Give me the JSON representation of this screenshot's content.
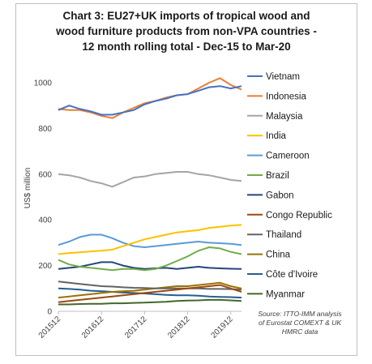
{
  "chart_data": {
    "type": "line",
    "title_lines": [
      "Chart 3: EU27+UK imports of tropical wood and",
      "wood furniture products from non-VPA countries -",
      "12 month rolling total - Dec-15 to Mar-20"
    ],
    "ylabel": "US$ million",
    "xlabel": "",
    "ylim": [
      0,
      1000
    ],
    "yticks": [
      0,
      200,
      400,
      600,
      800,
      1000
    ],
    "x_tick_labels": [
      "201512",
      "201612",
      "201712",
      "201812",
      "201912"
    ],
    "grid": false,
    "legend_position": "right",
    "source_lines": [
      "Source: ITTO-IMM analysis",
      "of Eurostat COMEXT & UK",
      "HMRC data"
    ],
    "x_points": [
      0,
      3,
      6,
      9,
      12,
      15,
      18,
      21,
      24,
      27,
      30,
      33,
      36,
      39,
      42,
      45,
      48,
      51
    ],
    "series": [
      {
        "name": "Vietnam",
        "color": "#4472c4",
        "width": 2,
        "values": [
          880,
          900,
          885,
          875,
          860,
          860,
          870,
          880,
          905,
          920,
          930,
          945,
          950,
          965,
          980,
          985,
          975,
          985
        ]
      },
      {
        "name": "Indonesia",
        "color": "#ed7d31",
        "width": 2,
        "values": [
          885,
          880,
          880,
          870,
          855,
          845,
          870,
          890,
          910,
          920,
          935,
          945,
          950,
          975,
          1000,
          1020,
          990,
          970
        ]
      },
      {
        "name": "Malaysia",
        "color": "#a5a5a5",
        "width": 2,
        "values": [
          600,
          595,
          585,
          570,
          560,
          545,
          565,
          585,
          590,
          600,
          605,
          610,
          610,
          600,
          595,
          585,
          575,
          570
        ]
      },
      {
        "name": "India",
        "color": "#ffc000",
        "width": 2,
        "values": [
          250,
          255,
          258,
          262,
          265,
          270,
          285,
          300,
          315,
          325,
          335,
          345,
          350,
          355,
          365,
          370,
          375,
          378
        ]
      },
      {
        "name": "Cameroon",
        "color": "#5b9bd5",
        "width": 2,
        "values": [
          290,
          305,
          325,
          335,
          335,
          320,
          300,
          285,
          280,
          285,
          290,
          295,
          300,
          305,
          300,
          298,
          295,
          290
        ]
      },
      {
        "name": "Brazil",
        "color": "#70ad47",
        "width": 2,
        "values": [
          225,
          205,
          195,
          190,
          185,
          180,
          185,
          185,
          180,
          185,
          200,
          220,
          240,
          265,
          280,
          275,
          260,
          250
        ]
      },
      {
        "name": "Gabon",
        "color": "#264478",
        "width": 2,
        "values": [
          185,
          190,
          195,
          205,
          215,
          215,
          200,
          190,
          185,
          188,
          190,
          185,
          190,
          195,
          190,
          188,
          186,
          185
        ]
      },
      {
        "name": "Congo Republic",
        "color": "#9e480e",
        "width": 2,
        "values": [
          40,
          45,
          50,
          55,
          60,
          65,
          70,
          75,
          80,
          85,
          90,
          95,
          100,
          105,
          110,
          115,
          100,
          85
        ]
      },
      {
        "name": "Thailand",
        "color": "#636363",
        "width": 2,
        "values": [
          130,
          125,
          120,
          115,
          110,
          108,
          105,
          103,
          102,
          100,
          100,
          100,
          100,
          100,
          98,
          98,
          97,
          95
        ]
      },
      {
        "name": "China",
        "color": "#997300",
        "width": 2,
        "values": [
          60,
          65,
          70,
          75,
          80,
          85,
          88,
          90,
          95,
          100,
          105,
          110,
          110,
          115,
          120,
          125,
          110,
          100
        ]
      },
      {
        "name": "Côte d'Ivoire",
        "color": "#255e91",
        "width": 2,
        "values": [
          100,
          98,
          95,
          90,
          88,
          85,
          82,
          80,
          78,
          75,
          72,
          70,
          70,
          68,
          65,
          63,
          62,
          60
        ]
      },
      {
        "name": "Myanmar",
        "color": "#43682b",
        "width": 2,
        "values": [
          30,
          30,
          32,
          33,
          33,
          35,
          35,
          37,
          38,
          40,
          42,
          45,
          47,
          48,
          50,
          50,
          48,
          45
        ]
      }
    ]
  }
}
